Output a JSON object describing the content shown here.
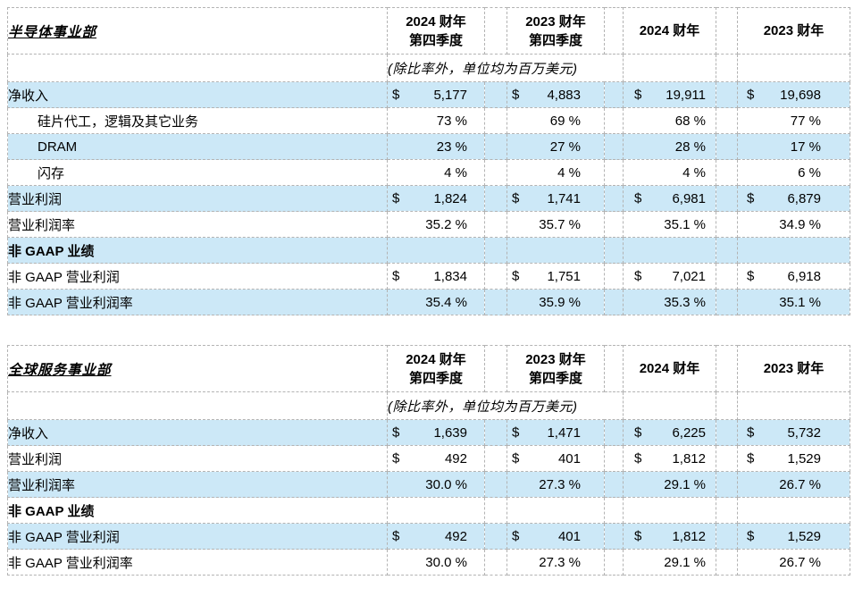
{
  "page": {
    "background": "#ffffff"
  },
  "shared": {
    "unit_note": "(除比率外，单位均为百万美元)",
    "currency_symbol": "$",
    "column_headers": [
      {
        "lines": [
          "2024 财年",
          "第四季度"
        ]
      },
      {
        "lines": [
          "2023 财年",
          "第四季度"
        ]
      },
      {
        "lines": [
          "2024 财年"
        ]
      },
      {
        "lines": [
          "2023 财年"
        ]
      }
    ],
    "colors": {
      "row_highlight": "#cce8f7",
      "border": "#b3b3b3",
      "text": "#000000"
    }
  },
  "tables": [
    {
      "title": "半导体事业部",
      "rows": [
        {
          "label": "净收入",
          "type": "currency",
          "indent": false,
          "bold": false,
          "values": [
            "5,177",
            "4,883",
            "19,911",
            "19,698"
          ]
        },
        {
          "label": "硅片代工，逻辑及其它业务",
          "type": "percent",
          "indent": true,
          "bold": false,
          "values": [
            "73 %",
            "69 %",
            "68 %",
            "77 %"
          ]
        },
        {
          "label": "DRAM",
          "type": "percent",
          "indent": true,
          "bold": false,
          "values": [
            "23 %",
            "27 %",
            "28 %",
            "17 %"
          ]
        },
        {
          "label": "闪存",
          "type": "percent",
          "indent": true,
          "bold": false,
          "values": [
            "4 %",
            "4 %",
            "4 %",
            "6 %"
          ]
        },
        {
          "label": "营业利润",
          "type": "currency",
          "indent": false,
          "bold": false,
          "values": [
            "1,824",
            "1,741",
            "6,981",
            "6,879"
          ]
        },
        {
          "label": "营业利润率",
          "type": "percent",
          "indent": false,
          "bold": false,
          "values": [
            "35.2 %",
            "35.7 %",
            "35.1 %",
            "34.9 %"
          ]
        },
        {
          "label": "非 GAAP 业绩",
          "type": "section",
          "indent": false,
          "bold": true,
          "values": [
            "",
            "",
            "",
            ""
          ]
        },
        {
          "label": "非 GAAP 营业利润",
          "type": "currency",
          "indent": false,
          "bold": false,
          "values": [
            "1,834",
            "1,751",
            "7,021",
            "6,918"
          ]
        },
        {
          "label": "非 GAAP 营业利润率",
          "type": "percent",
          "indent": false,
          "bold": false,
          "values": [
            "35.4 %",
            "35.9 %",
            "35.3 %",
            "35.1 %"
          ]
        }
      ]
    },
    {
      "title": "全球服务事业部",
      "rows": [
        {
          "label": "净收入",
          "type": "currency",
          "indent": false,
          "bold": false,
          "values": [
            "1,639",
            "1,471",
            "6,225",
            "5,732"
          ]
        },
        {
          "label": "营业利润",
          "type": "currency",
          "indent": false,
          "bold": false,
          "values": [
            "492",
            "401",
            "1,812",
            "1,529"
          ]
        },
        {
          "label": "营业利润率",
          "type": "percent",
          "indent": false,
          "bold": false,
          "values": [
            "30.0 %",
            "27.3 %",
            "29.1 %",
            "26.7 %"
          ]
        },
        {
          "label": "非 GAAP 业绩",
          "type": "section",
          "indent": false,
          "bold": true,
          "values": [
            "",
            "",
            "",
            ""
          ]
        },
        {
          "label": "非 GAAP 营业利润",
          "type": "currency",
          "indent": false,
          "bold": false,
          "values": [
            "492",
            "401",
            "1,812",
            "1,529"
          ]
        },
        {
          "label": "非 GAAP 营业利润率",
          "type": "percent",
          "indent": false,
          "bold": false,
          "values": [
            "30.0 %",
            "27.3 %",
            "29.1 %",
            "26.7 %"
          ]
        }
      ]
    }
  ]
}
